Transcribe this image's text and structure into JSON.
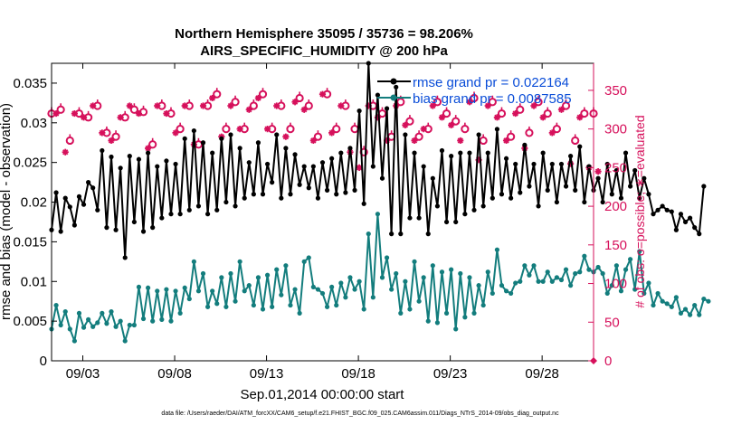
{
  "chart_data": {
    "type": "line",
    "title": "Northern Hemisphere 35095 / 35736 = 98.206%",
    "subtitle": "AIRS_SPECIFIC_HUMIDITY @ 200 hPa",
    "xlabel": "Sep.01,2014 00:00:00 start",
    "ylabel": "rmse and bias (model - observation)",
    "ylabel_right": "# of obs: o=possible; ∗=evaluated",
    "xlim": [
      1.3,
      30.8
    ],
    "ylim": [
      0,
      0.0375
    ],
    "ylim_right": [
      0,
      385
    ],
    "x_ticks": [
      3,
      8,
      13,
      18,
      23,
      28
    ],
    "x_tick_labels": [
      "09/03",
      "09/08",
      "09/13",
      "09/18",
      "09/23",
      "09/28"
    ],
    "y_ticks": [
      0,
      0.005,
      0.01,
      0.015,
      0.02,
      0.025,
      0.03,
      0.035
    ],
    "y_tick_labels": [
      "0",
      "0.005",
      "0.01",
      "0.015",
      "0.02",
      "0.025",
      "0.03",
      "0.035"
    ],
    "y_right_ticks": [
      0,
      50,
      100,
      150,
      200,
      250,
      300,
      350
    ],
    "y_right_tick_labels": [
      "0",
      "50",
      "100",
      "150",
      "200",
      "250",
      "300",
      "350"
    ],
    "colors": {
      "rmse": "#000000",
      "bias": "#137d7d",
      "obs": "#d6105b",
      "legend_text": "#0a4dd8"
    },
    "legend": [
      {
        "name": "rmse grand pr = 0.022164",
        "series": "rmse"
      },
      {
        "name": "bias grand pr = 0.0087585",
        "series": "bias"
      }
    ],
    "x_start": 1.3,
    "x_step": 0.25,
    "series": [
      {
        "name": "rmse",
        "values": [
          0.0165,
          0.0212,
          0.0163,
          0.0205,
          0.0194,
          0.0171,
          0.0207,
          0.0197,
          0.0225,
          0.0218,
          0.019,
          0.0265,
          0.0168,
          0.0257,
          0.0165,
          0.0243,
          0.013,
          0.0258,
          0.0175,
          0.0254,
          0.0163,
          0.0262,
          0.0168,
          0.0245,
          0.018,
          0.0252,
          0.0185,
          0.0248,
          0.0185,
          0.028,
          0.019,
          0.029,
          0.0195,
          0.0275,
          0.0185,
          0.0262,
          0.019,
          0.028,
          0.02,
          0.0285,
          0.0195,
          0.0268,
          0.0205,
          0.025,
          0.021,
          0.0275,
          0.021,
          0.0248,
          0.0225,
          0.0285,
          0.0205,
          0.0268,
          0.021,
          0.026,
          0.0222,
          0.0245,
          0.0218,
          0.0245,
          0.0205,
          0.025,
          0.0215,
          0.0255,
          0.021,
          0.0262,
          0.0212,
          0.0268,
          0.0215,
          0.0315,
          0.0198,
          0.0375,
          0.0245,
          0.0335,
          0.023,
          0.0318,
          0.016,
          0.0345,
          0.016,
          0.0285,
          0.018,
          0.0262,
          0.018,
          0.0245,
          0.016,
          0.023,
          0.0195,
          0.0265,
          0.0175,
          0.0258,
          0.0175,
          0.0262,
          0.0185,
          0.0262,
          0.019,
          0.0285,
          0.0195,
          0.0262,
          0.0205,
          0.0292,
          0.021,
          0.0255,
          0.0205,
          0.0248,
          0.0212,
          0.0272,
          0.022,
          0.0248,
          0.0195,
          0.0262,
          0.0215,
          0.0248,
          0.02,
          0.0248,
          0.022,
          0.0258,
          0.0215,
          0.027,
          0.02,
          0.0245,
          0.0215,
          0.023,
          0.02,
          0.0248,
          0.021,
          0.024,
          0.0205,
          0.0262,
          0.022,
          0.024,
          0.0205,
          0.023,
          0.021,
          0.0185,
          0.019,
          0.0195,
          0.019,
          0.0188,
          0.0165,
          0.0185,
          0.0175,
          0.018,
          0.0168,
          0.016,
          0.022
        ]
      },
      {
        "name": "bias",
        "values": [
          0.004,
          0.007,
          0.0045,
          0.0062,
          0.004,
          0.0025,
          0.006,
          0.0042,
          0.0052,
          0.0043,
          0.0048,
          0.006,
          0.0047,
          0.0062,
          0.0043,
          0.005,
          0.0025,
          0.0045,
          0.0045,
          0.0093,
          0.0053,
          0.0092,
          0.005,
          0.0088,
          0.0052,
          0.009,
          0.005,
          0.0088,
          0.006,
          0.0092,
          0.0078,
          0.0125,
          0.0088,
          0.011,
          0.0068,
          0.0088,
          0.0072,
          0.0105,
          0.0068,
          0.011,
          0.0075,
          0.0125,
          0.0088,
          0.0095,
          0.007,
          0.0105,
          0.0065,
          0.0108,
          0.0068,
          0.0115,
          0.0083,
          0.012,
          0.007,
          0.009,
          0.006,
          0.0125,
          0.013,
          0.0093,
          0.009,
          0.0085,
          0.0068,
          0.0093,
          0.007,
          0.0098,
          0.008,
          0.0105,
          0.009,
          0.01,
          0.0065,
          0.016,
          0.008,
          0.0185,
          0.0105,
          0.013,
          0.009,
          0.011,
          0.006,
          0.01,
          0.0065,
          0.0125,
          0.0075,
          0.0105,
          0.005,
          0.012,
          0.0048,
          0.0112,
          0.006,
          0.0115,
          0.004,
          0.011,
          0.0055,
          0.0105,
          0.006,
          0.0095,
          0.007,
          0.0112,
          0.0085,
          0.014,
          0.0095,
          0.0088,
          0.0085,
          0.0098,
          0.01,
          0.012,
          0.0108,
          0.012,
          0.01,
          0.01,
          0.0112,
          0.01,
          0.0105,
          0.0102,
          0.0115,
          0.0095,
          0.011,
          0.0112,
          0.0132,
          0.0115,
          0.0112,
          0.0118,
          0.011,
          0.0085,
          0.0095,
          0.012,
          0.0088,
          0.0115,
          0.0128,
          0.009,
          0.0138,
          0.0085,
          0.0098,
          0.007,
          0.0085,
          0.0075,
          0.0072,
          0.0068,
          0.008,
          0.006,
          0.0065,
          0.0058,
          0.007,
          0.0058,
          0.0078,
          0.0075
        ]
      },
      {
        "name": "obs_possible",
        "x_start": 1.3,
        "x_step": 0.5,
        "values": [
          320,
          325,
          285,
          320,
          315,
          330,
          295,
          290,
          315,
          325,
          322,
          280,
          330,
          320,
          300,
          330,
          280,
          330,
          345,
          300,
          335,
          300,
          330,
          345,
          300,
          330,
          300,
          340,
          330,
          290,
          345,
          300,
          330,
          300,
          270,
          330,
          320,
          290,
          335,
          310,
          290,
          300,
          335,
          320,
          310,
          300,
          340,
          285,
          335,
          320,
          290,
          325,
          295,
          335,
          320,
          300,
          330,
          285,
          320,
          320
        ]
      },
      {
        "name": "obs_evaluated",
        "x_start": 1.55,
        "x_step": 0.5,
        "values": [
          320,
          270,
          320,
          315,
          330,
          295,
          285,
          315,
          330,
          320,
          275,
          330,
          320,
          295,
          330,
          280,
          330,
          340,
          290,
          330,
          300,
          325,
          340,
          300,
          330,
          290,
          335,
          325,
          285,
          345,
          295,
          330,
          270,
          250,
          330,
          315,
          285,
          330,
          305,
          285,
          300,
          330,
          315,
          305,
          285,
          335,
          260,
          330,
          315,
          285,
          320,
          275,
          330,
          315,
          295,
          325,
          255,
          315,
          250,
          245
        ]
      }
    ]
  },
  "footer": "data file: /Users/raeder/DAI/ATM_forcXX/CAM6_setup/f.e21.FHIST_BGC.f09_025.CAM6assim.011/Diags_NTrS_2014-09/obs_diag_output.nc"
}
